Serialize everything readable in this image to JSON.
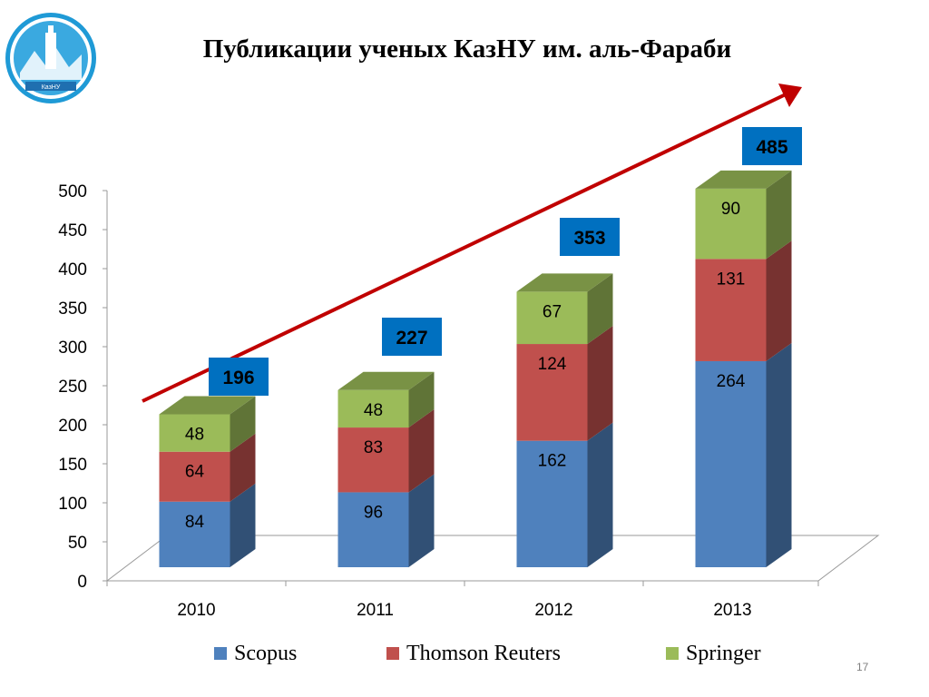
{
  "slide": {
    "title": "Публикации ученых КазНУ им. аль-Фараби",
    "page_number": "17",
    "logo": {
      "icon": "university-seal-icon",
      "text": "КазНУ"
    }
  },
  "chart_data": {
    "type": "bar",
    "stacked": true,
    "three_d": true,
    "categories": [
      "2010",
      "2011",
      "2012",
      "2013"
    ],
    "series": [
      {
        "name": "Scopus",
        "values": [
          84,
          96,
          162,
          264
        ],
        "color": "#4f81bd"
      },
      {
        "name": "Thomson Reuters",
        "values": [
          64,
          83,
          124,
          131
        ],
        "color": "#c0504d"
      },
      {
        "name": "Springer",
        "values": [
          48,
          48,
          67,
          90
        ],
        "color": "#9bbb59"
      }
    ],
    "totals": [
      196,
      227,
      353,
      485
    ],
    "totals_box_color": "#0070c0",
    "trend_arrow_color": "#c00000",
    "ylim": [
      0,
      500
    ],
    "yticks": [
      0,
      50,
      100,
      150,
      200,
      250,
      300,
      350,
      400,
      450,
      500
    ],
    "legend_position": "bottom",
    "grid": false
  }
}
